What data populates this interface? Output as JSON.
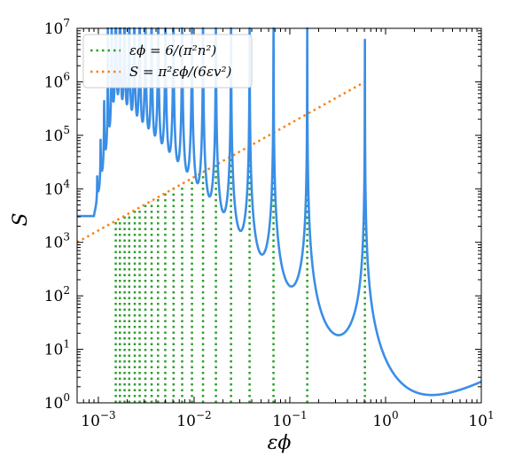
{
  "chart_data": {
    "type": "line",
    "xlabel": "εϕ",
    "ylabel": "S",
    "xscale": "log",
    "yscale": "log",
    "xlim": [
      0.0006,
      10
    ],
    "ylim": [
      1,
      10000000
    ],
    "grid": false,
    "legend_position": "top-left",
    "x_ticks": [
      {
        "base": "10",
        "exp": "−3"
      },
      {
        "base": "10",
        "exp": "−2"
      },
      {
        "base": "10",
        "exp": "−1"
      },
      {
        "base": "10",
        "exp": "0"
      },
      {
        "base": "10",
        "exp": "1"
      }
    ],
    "y_ticks": [
      {
        "base": "10",
        "exp": "0"
      },
      {
        "base": "10",
        "exp": "1"
      },
      {
        "base": "10",
        "exp": "2"
      },
      {
        "base": "10",
        "exp": "3"
      },
      {
        "base": "10",
        "exp": "4"
      },
      {
        "base": "10",
        "exp": "5"
      },
      {
        "base": "10",
        "exp": "6"
      },
      {
        "base": "10",
        "exp": "7"
      }
    ],
    "legend": [
      {
        "label": "εϕ = 6/(π²n²)",
        "color": "#2ca02c",
        "style": "dotted"
      },
      {
        "label": "S = π²εϕ/(6εv²)",
        "color": "#ff7f0e",
        "style": "dotted"
      }
    ],
    "series": [
      {
        "kind": "resonance-curve",
        "color": "#3a8ee6",
        "style": "solid",
        "low_x_plateau": 3100,
        "high_x_value": 1.2,
        "valleys": [
          {
            "x": 0.28,
            "y": 21
          },
          {
            "x": 0.1,
            "y": 60
          },
          {
            "x": 0.05,
            "y": 120
          },
          {
            "x": 0.03,
            "y": 180
          },
          {
            "x": 0.02,
            "y": 350
          }
        ]
      },
      {
        "kind": "vertical-lines",
        "color": "#2ca02c",
        "style": "dotted",
        "x_values": [
          0.608,
          0.152,
          0.0675,
          0.038,
          0.0243,
          0.0169,
          0.0124,
          0.0095,
          0.0075,
          0.0061,
          0.005,
          0.0042,
          0.0036,
          0.0031,
          0.0027,
          0.0024,
          0.0021,
          0.00188,
          0.00168,
          0.00152
        ],
        "y_bottom": 1,
        "y_top": [
          1000000,
          250000,
          111000,
          62500,
          40000,
          27800,
          20400,
          15600,
          12300,
          10000,
          8300,
          7000,
          5900,
          5100,
          4450,
          3900,
          3460,
          3090,
          2770,
          2500
        ]
      },
      {
        "kind": "line",
        "color": "#ff7f0e",
        "style": "dotted",
        "x": [
          0.0006,
          0.608
        ],
        "y": [
          1000,
          1000000
        ]
      }
    ]
  }
}
